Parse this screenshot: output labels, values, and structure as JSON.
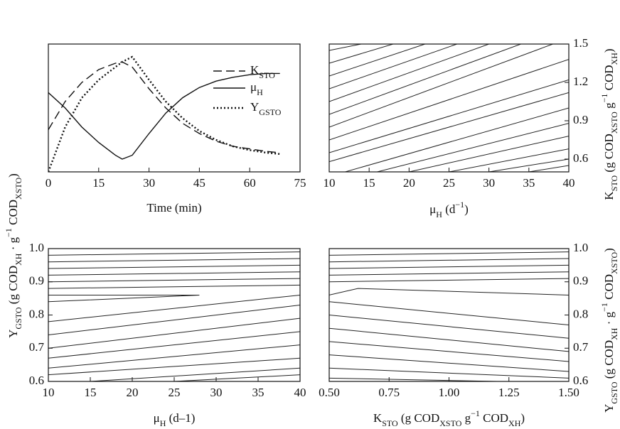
{
  "chart_data": [
    {
      "type": "line",
      "x": [
        0,
        5,
        10,
        15,
        20,
        22,
        25,
        30,
        35,
        40,
        45,
        50,
        55,
        60,
        65,
        69
      ],
      "xlim": [
        0,
        75
      ],
      "xticks": [
        0,
        15,
        30,
        45,
        60,
        75
      ],
      "ylim": [
        0,
        1
      ],
      "xlabel": [
        {
          "text": "Time (min)"
        }
      ],
      "series": [
        {
          "name": "K",
          "name_sub": "STO",
          "color": "#111",
          "dash": "dashed",
          "values": [
            0.33,
            0.55,
            0.7,
            0.8,
            0.85,
            0.86,
            0.82,
            0.65,
            0.5,
            0.38,
            0.3,
            0.24,
            0.2,
            0.18,
            0.16,
            0.15
          ]
        },
        {
          "name": "μ",
          "name_sub": "H",
          "color": "#111",
          "dash": "solid",
          "values": [
            0.62,
            0.5,
            0.35,
            0.23,
            0.13,
            0.1,
            0.13,
            0.3,
            0.46,
            0.58,
            0.66,
            0.71,
            0.74,
            0.76,
            0.77,
            0.77
          ]
        },
        {
          "name": "Y",
          "name_sub": "GSTO",
          "color": "#111",
          "dash": "dotted",
          "values": [
            0.0,
            0.35,
            0.58,
            0.72,
            0.82,
            0.86,
            0.9,
            0.72,
            0.55,
            0.42,
            0.32,
            0.25,
            0.2,
            0.17,
            0.15,
            0.14
          ]
        }
      ]
    },
    {
      "type": "contour",
      "y_axis": "right",
      "xlim": [
        10,
        40
      ],
      "xticks": [
        10,
        15,
        20,
        25,
        30,
        35,
        40
      ],
      "ylim": [
        0.5,
        1.5
      ],
      "yticks": [
        0.6,
        0.9,
        1.2,
        1.5
      ],
      "xlabel": [
        {
          "text": "μ"
        },
        {
          "text": "H",
          "sub": true
        },
        {
          "text": " (d"
        },
        {
          "text": "−1",
          "sup": true
        },
        {
          "text": ")"
        }
      ],
      "ylabel": [
        {
          "text": "K"
        },
        {
          "text": "STO",
          "sub": true
        },
        {
          "text": " (g COD"
        },
        {
          "text": "XSTO",
          "sub": true
        },
        {
          "text": " g"
        },
        {
          "text": "−1",
          "sup": true
        },
        {
          "text": " COD"
        },
        {
          "text": "XH",
          "sub": true
        },
        {
          "text": ")"
        }
      ],
      "contours": [
        {
          "x": [
            10,
            14
          ],
          "y": [
            1.45,
            1.5
          ]
        },
        {
          "x": [
            10,
            18
          ],
          "y": [
            1.35,
            1.5
          ]
        },
        {
          "x": [
            10,
            22
          ],
          "y": [
            1.25,
            1.5
          ]
        },
        {
          "x": [
            10,
            26
          ],
          "y": [
            1.15,
            1.5
          ]
        },
        {
          "x": [
            10,
            30
          ],
          "y": [
            1.05,
            1.5
          ]
        },
        {
          "x": [
            10,
            34
          ],
          "y": [
            0.95,
            1.5
          ]
        },
        {
          "x": [
            10,
            38
          ],
          "y": [
            0.85,
            1.5
          ]
        },
        {
          "x": [
            10,
            40
          ],
          "y": [
            0.75,
            1.38
          ]
        },
        {
          "x": [
            10,
            40
          ],
          "y": [
            0.65,
            1.22
          ]
        },
        {
          "x": [
            10,
            40
          ],
          "y": [
            0.58,
            1.12
          ]
        },
        {
          "x": [
            12,
            40
          ],
          "y": [
            0.5,
            1.0
          ]
        },
        {
          "x": [
            16,
            40
          ],
          "y": [
            0.5,
            0.88
          ]
        },
        {
          "x": [
            20,
            40
          ],
          "y": [
            0.5,
            0.78
          ]
        },
        {
          "x": [
            25,
            40
          ],
          "y": [
            0.5,
            0.68
          ]
        },
        {
          "x": [
            30,
            40
          ],
          "y": [
            0.5,
            0.6
          ]
        },
        {
          "x": [
            35,
            40
          ],
          "y": [
            0.5,
            0.55
          ]
        }
      ]
    },
    {
      "type": "contour",
      "y_axis": "left",
      "xlim": [
        10,
        40
      ],
      "xticks": [
        10,
        15,
        20,
        25,
        30,
        35,
        40
      ],
      "ylim": [
        0.6,
        1.0
      ],
      "yticks": [
        0.6,
        0.7,
        0.8,
        0.9,
        {
          "value": 1,
          "label": "1.0"
        }
      ],
      "xlabel": [
        {
          "text": "μ"
        },
        {
          "text": "H",
          "sub": true
        },
        {
          "text": " (d–1)"
        }
      ],
      "ylabel": [
        {
          "text": "Y"
        },
        {
          "text": "GSTO",
          "sub": true
        },
        {
          "text": " (g COD"
        },
        {
          "text": "XH",
          "sub": true
        },
        {
          "text": " · g"
        },
        {
          "text": "−1",
          "sup": true
        },
        {
          "text": " COD"
        },
        {
          "text": "XSTO",
          "sub": true
        },
        {
          "text": ")"
        }
      ],
      "contours": [
        {
          "x": [
            10,
            40
          ],
          "y": [
            0.98,
            0.99
          ]
        },
        {
          "x": [
            10,
            40
          ],
          "y": [
            0.96,
            0.97
          ]
        },
        {
          "x": [
            10,
            40
          ],
          "y": [
            0.94,
            0.95
          ]
        },
        {
          "x": [
            10,
            40
          ],
          "y": [
            0.92,
            0.93
          ]
        },
        {
          "x": [
            10,
            40
          ],
          "y": [
            0.9,
            0.91
          ]
        },
        {
          "x": [
            10,
            40
          ],
          "y": [
            0.88,
            0.89
          ]
        },
        {
          "x": [
            10,
            28,
            10
          ],
          "y": [
            0.86,
            0.86,
            0.84
          ]
        },
        {
          "x": [
            10,
            40
          ],
          "y": [
            0.78,
            0.86
          ]
        },
        {
          "x": [
            10,
            40
          ],
          "y": [
            0.74,
            0.83
          ]
        },
        {
          "x": [
            10,
            40
          ],
          "y": [
            0.7,
            0.79
          ]
        },
        {
          "x": [
            10,
            40
          ],
          "y": [
            0.67,
            0.75
          ]
        },
        {
          "x": [
            10,
            40
          ],
          "y": [
            0.64,
            0.71
          ]
        },
        {
          "x": [
            10,
            40
          ],
          "y": [
            0.62,
            0.67
          ]
        },
        {
          "x": [
            15,
            40
          ],
          "y": [
            0.6,
            0.64
          ]
        },
        {
          "x": [
            25,
            40
          ],
          "y": [
            0.6,
            0.62
          ]
        }
      ]
    },
    {
      "type": "contour",
      "y_axis": "right",
      "xlim": [
        0.5,
        1.5
      ],
      "xticks": [
        {
          "value": 0.5,
          "label": "0.50"
        },
        0.75,
        {
          "value": 1,
          "label": "1.00"
        },
        1.25,
        {
          "value": 1.5,
          "label": "1.50"
        }
      ],
      "ylim": [
        0.6,
        1.0
      ],
      "yticks": [
        0.6,
        0.7,
        0.8,
        0.9,
        {
          "value": 1,
          "label": "1.0"
        }
      ],
      "xlabel": [
        {
          "text": "K"
        },
        {
          "text": "STO",
          "sub": true
        },
        {
          "text": " (g COD"
        },
        {
          "text": "XSTO",
          "sub": true
        },
        {
          "text": " g"
        },
        {
          "text": "−1",
          "sup": true
        },
        {
          "text": " COD"
        },
        {
          "text": "XH",
          "sub": true
        },
        {
          "text": ")"
        }
      ],
      "ylabel": [
        {
          "text": "Y"
        },
        {
          "text": "GSTO",
          "sub": true
        },
        {
          "text": " (g COD"
        },
        {
          "text": "XH",
          "sub": true
        },
        {
          "text": " · g"
        },
        {
          "text": "−1",
          "sup": true
        },
        {
          "text": " COD"
        },
        {
          "text": "XSTO",
          "sub": true
        },
        {
          "text": ")"
        }
      ],
      "contours": [
        {
          "x": [
            0.5,
            1.5
          ],
          "y": [
            0.98,
            0.99
          ]
        },
        {
          "x": [
            0.5,
            1.5
          ],
          "y": [
            0.96,
            0.97
          ]
        },
        {
          "x": [
            0.5,
            1.5
          ],
          "y": [
            0.94,
            0.95
          ]
        },
        {
          "x": [
            0.5,
            1.5
          ],
          "y": [
            0.92,
            0.93
          ]
        },
        {
          "x": [
            0.5,
            1.5
          ],
          "y": [
            0.9,
            0.91
          ]
        },
        {
          "x": [
            0.5,
            0.62,
            1.5
          ],
          "y": [
            0.86,
            0.88,
            0.86
          ]
        },
        {
          "x": [
            0.5,
            1.5
          ],
          "y": [
            0.84,
            0.77
          ]
        },
        {
          "x": [
            0.5,
            1.5
          ],
          "y": [
            0.8,
            0.73
          ]
        },
        {
          "x": [
            0.5,
            1.5
          ],
          "y": [
            0.76,
            0.69
          ]
        },
        {
          "x": [
            0.5,
            1.5
          ],
          "y": [
            0.72,
            0.66
          ]
        },
        {
          "x": [
            0.5,
            1.5
          ],
          "y": [
            0.68,
            0.63
          ]
        },
        {
          "x": [
            0.5,
            1.5
          ],
          "y": [
            0.64,
            0.61
          ]
        },
        {
          "x": [
            0.5,
            1.2
          ],
          "y": [
            0.61,
            0.6
          ]
        }
      ]
    }
  ]
}
